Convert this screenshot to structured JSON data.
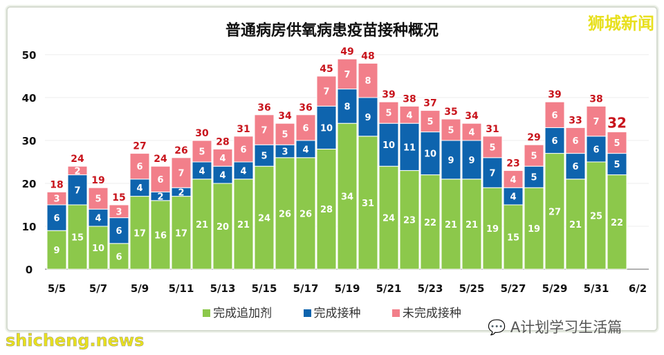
{
  "brand": "狮城新闻",
  "footer": {
    "site": "shicheng.news",
    "wechat": "A计划学习生活篇"
  },
  "colors": {
    "booster": "#8cc84b",
    "completed": "#0e64ae",
    "incomplete": "#f27f8a",
    "total_label": "#c8141c"
  },
  "chart_data": {
    "type": "bar",
    "stacked": true,
    "title": "普通病房供氧病患疫苗接种概况",
    "xlabel": "",
    "ylabel": "",
    "ylim": [
      0,
      50
    ],
    "yticks": [
      0,
      10,
      20,
      30,
      40,
      50
    ],
    "categories": [
      "5/5",
      "5/6",
      "5/7",
      "5/8",
      "5/9",
      "5/10",
      "5/11",
      "5/12",
      "5/13",
      "5/14",
      "5/15",
      "5/16",
      "5/17",
      "5/18",
      "5/19",
      "5/20",
      "5/21",
      "5/22",
      "5/23",
      "5/24",
      "5/25",
      "5/26",
      "5/27",
      "5/28",
      "5/29",
      "5/30",
      "5/31",
      "6/1"
    ],
    "xticks": [
      "5/5",
      "5/7",
      "5/9",
      "5/11",
      "5/13",
      "5/15",
      "5/17",
      "5/19",
      "5/21",
      "5/23",
      "5/25",
      "5/27",
      "5/29",
      "5/31",
      "6/2"
    ],
    "series": [
      {
        "name": "完成追加剂",
        "values": [
          9,
          15,
          10,
          6,
          17,
          16,
          17,
          21,
          20,
          21,
          24,
          26,
          26,
          28,
          34,
          31,
          24,
          23,
          22,
          21,
          21,
          19,
          15,
          19,
          27,
          21,
          25,
          22
        ]
      },
      {
        "name": "完成接种",
        "values": [
          6,
          7,
          4,
          6,
          4,
          2,
          2,
          4,
          4,
          4,
          5,
          3,
          4,
          10,
          8,
          9,
          10,
          11,
          10,
          9,
          9,
          7,
          4,
          5,
          6,
          6,
          6,
          5
        ]
      },
      {
        "name": "未完成接种",
        "values": [
          3,
          2,
          5,
          3,
          6,
          6,
          7,
          5,
          4,
          6,
          7,
          5,
          6,
          7,
          7,
          8,
          5,
          4,
          5,
          5,
          4,
          5,
          4,
          5,
          6,
          6,
          7,
          5
        ]
      }
    ],
    "totals": [
      18,
      24,
      19,
      15,
      27,
      24,
      26,
      30,
      28,
      31,
      36,
      34,
      36,
      45,
      49,
      48,
      39,
      38,
      37,
      35,
      34,
      31,
      23,
      29,
      39,
      33,
      38,
      32
    ],
    "legend": "bottom"
  }
}
